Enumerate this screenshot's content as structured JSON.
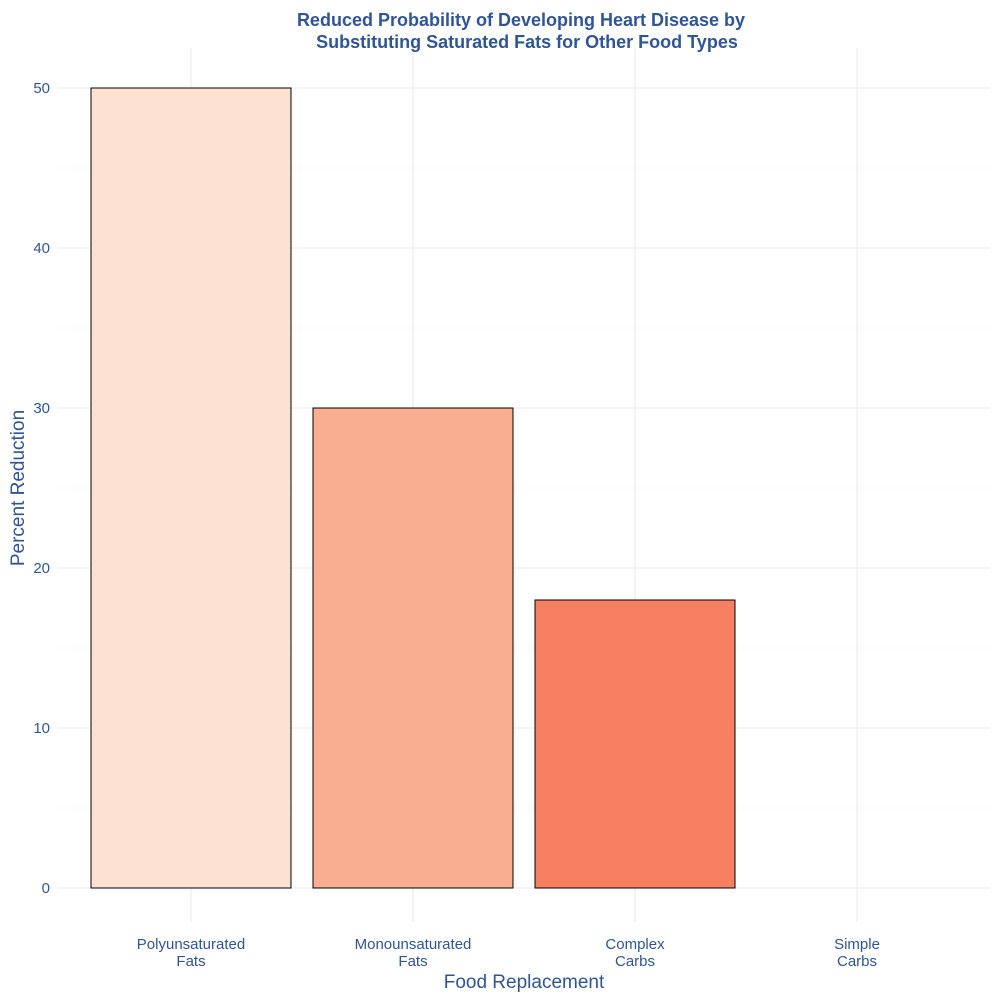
{
  "chart_data": {
    "type": "bar",
    "title_lines": [
      "Reduced Probability of Developing Heart Disease by",
      "Substituting Saturated Fats for Other Food Types"
    ],
    "xlabel": "Food Replacement",
    "ylabel": "Percent Reduction",
    "categories": [
      [
        "Polyunsaturated",
        "Fats"
      ],
      [
        "Monounsaturated",
        "Fats"
      ],
      [
        "Complex",
        "Carbs"
      ],
      [
        "Simple",
        "Carbs"
      ]
    ],
    "values": [
      50,
      30,
      18,
      0
    ],
    "colors": [
      "#fce0d0",
      "#f9ae91",
      "#f88062",
      "#ee4a3a"
    ],
    "ylim": [
      0,
      50
    ],
    "yticks": [
      0,
      10,
      20,
      30,
      40,
      50
    ],
    "grid": true,
    "legend": "none"
  }
}
